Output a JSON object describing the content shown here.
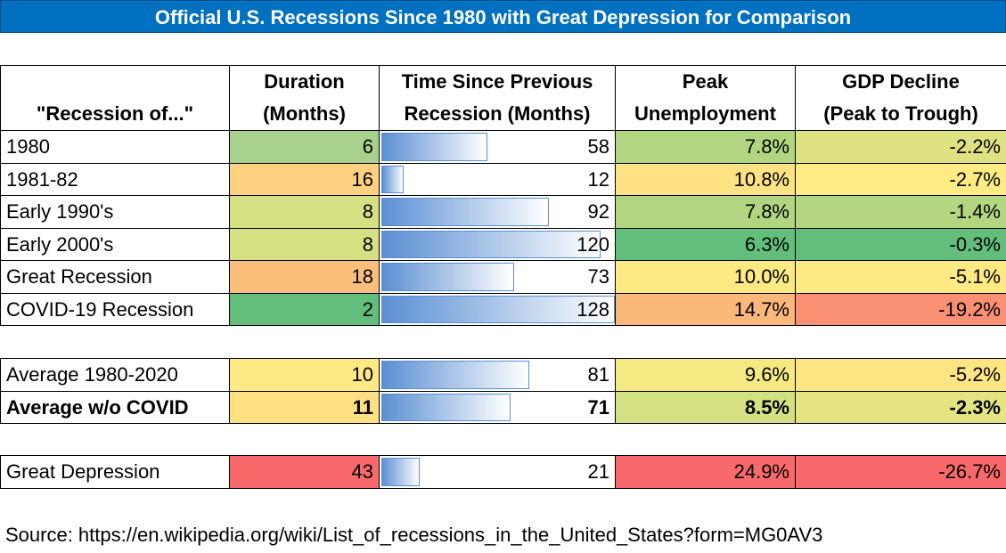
{
  "title": "Official U.S. Recessions Since 1980 with Great Depression for Comparison",
  "table": {
    "headers": [
      [
        "\"Recession of...\""
      ],
      [
        "Duration",
        "(Months)"
      ],
      [
        "Time Since Previous",
        "Recession (Months)"
      ],
      [
        "Peak",
        "Unemployment"
      ],
      [
        "GDP Decline",
        "(Peak to Trough)"
      ]
    ],
    "bar_color": "#5b8fd3",
    "groups": [
      {
        "rows": [
          {
            "cells": [
              "1980",
              6,
              58,
              "7.8%",
              "-2.2%"
            ],
            "colors": [
              "#a9d18e",
              "#b1d580",
              "#dfe283"
            ]
          },
          {
            "cells": [
              "1981-82",
              16,
              12,
              "10.8%",
              "-2.7%"
            ],
            "colors": [
              "#fdd17f",
              "#ffe283",
              "#ffeb84"
            ]
          },
          {
            "cells": [
              "Early 1990's",
              8,
              92,
              "7.8%",
              "-1.4%"
            ],
            "colors": [
              "#d5e083",
              "#b1d580",
              "#b5d680"
            ]
          },
          {
            "cells": [
              "Early 2000's",
              8,
              120,
              "6.3%",
              "-0.3%"
            ],
            "colors": [
              "#d5e083",
              "#63be7b",
              "#63be7b"
            ]
          },
          {
            "cells": [
              "Great Recession",
              18,
              73,
              "10.0%",
              "-5.1%"
            ],
            "colors": [
              "#fcbf7b",
              "#fee983",
              "#fee983"
            ]
          },
          {
            "cells": [
              "COVID-19 Recession",
              2,
              128,
              "14.7%",
              "-19.2%"
            ],
            "colors": [
              "#63be7b",
              "#fcb77a",
              "#f98f73"
            ]
          }
        ]
      },
      {
        "rows": [
          {
            "cells": [
              "Average 1980-2020",
              10,
              81,
              "9.6%",
              "-5.2%"
            ],
            "colors": [
              "#ffe984",
              "#f5e984",
              "#fee583"
            ]
          },
          {
            "cells": [
              "Average w/o COVID",
              11,
              71,
              "8.5%",
              "-2.3%"
            ],
            "colors": [
              "#ffe083",
              "#d4e082",
              "#e5e483"
            ],
            "bold": true
          }
        ]
      },
      {
        "rows": [
          {
            "cells": [
              "Great Depression",
              43,
              21,
              "24.9%",
              "-26.7%"
            ],
            "colors": [
              "#f8696b",
              "#f8696b",
              "#f8696b"
            ]
          }
        ]
      }
    ]
  },
  "source": "Source: https://en.wikipedia.org/wiki/List_of_recessions_in_the_United_States?form=MG0AV3"
}
